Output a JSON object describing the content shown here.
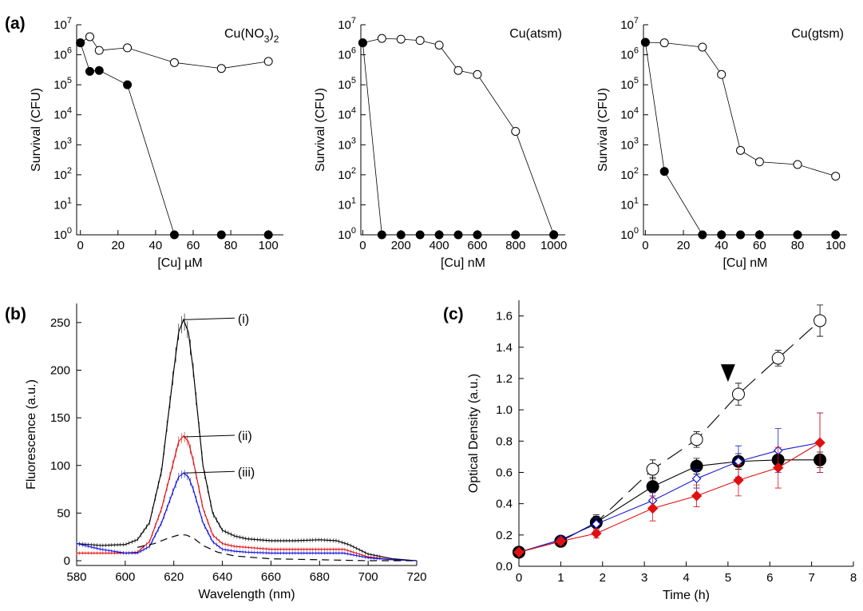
{
  "panel_labels": [
    "(a)",
    "(b)",
    "(c)"
  ],
  "chart_data": [
    {
      "type": "scatter",
      "title": "Cu(NO3)2",
      "xlabel": "[Cu] µM",
      "ylabel": "Survival (CFU)",
      "yscale": "log",
      "xlim": [
        -2,
        108
      ],
      "ylim": [
        1,
        10000000
      ],
      "xticks": [
        0,
        20,
        40,
        60,
        80,
        100
      ],
      "yticks": [
        1,
        10,
        100,
        1000,
        10000,
        100000,
        1000000,
        10000000
      ],
      "series": [
        {
          "marker": "open-circle",
          "x": [
            0,
            5,
            10,
            25,
            50,
            75,
            100
          ],
          "y": [
            2500000,
            4000000,
            1400000,
            1700000,
            550000,
            350000,
            600000
          ]
        },
        {
          "marker": "filled-circle",
          "x": [
            0,
            5,
            10,
            25,
            50,
            75,
            100
          ],
          "y": [
            2500000,
            280000,
            300000,
            100000,
            1,
            1,
            1
          ]
        }
      ]
    },
    {
      "type": "scatter",
      "title": "Cu(atsm)",
      "xlabel": "[Cu] nM",
      "ylabel": "Survival (CFU)",
      "yscale": "log",
      "xlim": [
        -10,
        1060
      ],
      "ylim": [
        1,
        10000000
      ],
      "xticks": [
        0,
        200,
        400,
        600,
        800,
        1000
      ],
      "yticks": [
        1,
        10,
        100,
        1000,
        10000,
        100000,
        1000000,
        10000000
      ],
      "series": [
        {
          "marker": "open-circle",
          "x": [
            0,
            100,
            200,
            300,
            400,
            500,
            600,
            800,
            1000
          ],
          "y": [
            2500000,
            3500000,
            3300000,
            3000000,
            2100000,
            300000,
            220000,
            2800,
            1
          ]
        },
        {
          "marker": "filled-circle",
          "x": [
            0,
            100,
            200,
            300,
            400,
            500,
            600,
            800,
            1000
          ],
          "y": [
            2500000,
            1,
            1,
            1,
            1,
            1,
            1,
            1,
            1
          ]
        }
      ]
    },
    {
      "type": "scatter",
      "title": "Cu(gtsm)",
      "xlabel": "[Cu] nM",
      "ylabel": "Survival (CFU)",
      "yscale": "log",
      "xlim": [
        -1,
        106
      ],
      "ylim": [
        1,
        10000000
      ],
      "xticks": [
        0,
        20,
        40,
        60,
        80,
        100
      ],
      "yticks": [
        1,
        10,
        100,
        1000,
        10000,
        100000,
        1000000,
        10000000
      ],
      "series": [
        {
          "marker": "open-circle",
          "x": [
            0,
            10,
            30,
            40,
            50,
            60,
            80,
            100
          ],
          "y": [
            2600000,
            2500000,
            1800000,
            220000,
            650,
            270,
            220,
            90
          ]
        },
        {
          "marker": "filled-circle",
          "x": [
            0,
            10,
            30,
            40,
            50,
            60,
            80,
            100
          ],
          "y": [
            2600000,
            130,
            1,
            1,
            1,
            1,
            1,
            1
          ]
        }
      ]
    },
    {
      "type": "line",
      "title": "",
      "xlabel": "Wavelength (nm)",
      "ylabel": "Fluorescence (a.u.)",
      "xlim": [
        580,
        720
      ],
      "ylim": [
        -5,
        270
      ],
      "xticks": [
        580,
        600,
        620,
        640,
        660,
        680,
        700,
        720
      ],
      "yticks": [
        0,
        50,
        100,
        150,
        200,
        250
      ],
      "annotations": [
        {
          "text": "(i)",
          "x": 624,
          "y": 253
        },
        {
          "text": "(ii)",
          "x": 624,
          "y": 130
        },
        {
          "text": "(iii)",
          "x": 624,
          "y": 92
        }
      ],
      "series": [
        {
          "color": "#000000",
          "style": "solid-errorbars",
          "x": [
            580,
            590,
            600,
            605,
            610,
            615,
            620,
            622,
            624,
            626,
            628,
            632,
            636,
            640,
            645,
            650,
            660,
            670,
            680,
            687,
            692,
            700,
            710,
            720
          ],
          "y": [
            18,
            16,
            17,
            22,
            40,
            95,
            200,
            240,
            253,
            240,
            200,
            100,
            50,
            32,
            26,
            23,
            21,
            21,
            22,
            21,
            17,
            7,
            2,
            0
          ]
        },
        {
          "color": "#e01010",
          "style": "solid-errorbars",
          "x": [
            580,
            590,
            600,
            605,
            610,
            615,
            620,
            622,
            624,
            626,
            628,
            632,
            636,
            640,
            645,
            650,
            660,
            680,
            690,
            700,
            710,
            720
          ],
          "y": [
            8,
            8,
            8,
            9,
            20,
            55,
            105,
            125,
            131,
            125,
            105,
            55,
            27,
            18,
            15,
            14,
            12,
            12,
            12,
            4,
            1,
            0
          ]
        },
        {
          "color": "#1010e0",
          "style": "solid-errorbars",
          "x": [
            580,
            590,
            600,
            605,
            610,
            615,
            620,
            622,
            624,
            626,
            628,
            632,
            636,
            640,
            645,
            650,
            660,
            680,
            690,
            700,
            710,
            720
          ],
          "y": [
            18,
            12,
            8,
            8,
            15,
            40,
            75,
            88,
            92,
            88,
            75,
            40,
            20,
            12,
            10,
            9,
            8,
            8,
            8,
            3,
            1,
            0
          ]
        },
        {
          "color": "#000000",
          "style": "dashed",
          "x": [
            605,
            612,
            618,
            622,
            625,
            628,
            632,
            638,
            645,
            660,
            680,
            700,
            720
          ],
          "y": [
            14,
            18,
            24,
            27,
            27,
            24,
            16,
            9,
            5,
            2,
            1,
            0,
            0
          ]
        }
      ]
    },
    {
      "type": "line",
      "title": "",
      "xlabel": "Time (h)",
      "ylabel": "Optical Density (a.u.)",
      "xlim": [
        0,
        8
      ],
      "ylim": [
        0,
        1.7
      ],
      "xticks": [
        0,
        1,
        2,
        3,
        4,
        5,
        6,
        7,
        8
      ],
      "yticks": [
        0.0,
        0.2,
        0.4,
        0.6,
        0.8,
        1.0,
        1.2,
        1.4,
        1.6
      ],
      "annotations": [
        {
          "text": "▼",
          "x": 5,
          "y": 1.23
        }
      ],
      "series": [
        {
          "marker": "open-circle",
          "color": "#000000",
          "style": "dashed",
          "x": [
            0,
            1,
            1.85,
            3.2,
            4.25,
            5.25,
            6.2,
            7.2
          ],
          "y": [
            0.09,
            0.16,
            0.28,
            0.62,
            0.81,
            1.1,
            1.33,
            1.57
          ],
          "err": [
            0.01,
            0.02,
            0.05,
            0.06,
            0.05,
            0.07,
            0.05,
            0.1
          ]
        },
        {
          "marker": "filled-circle",
          "color": "#000000",
          "style": "solid",
          "x": [
            0,
            1,
            1.85,
            3.2,
            4.25,
            5.25,
            6.2,
            7.2
          ],
          "y": [
            0.09,
            0.16,
            0.28,
            0.51,
            0.64,
            0.67,
            0.68,
            0.68
          ],
          "err": [
            0.01,
            0.02,
            0.04,
            0.06,
            0.05,
            0.05,
            0.05,
            0.05
          ]
        },
        {
          "marker": "open-diamond",
          "color": "#1a1ad0",
          "style": "solid",
          "x": [
            0,
            1,
            1.85,
            3.2,
            4.25,
            5.25,
            6.2,
            7.2
          ],
          "y": [
            0.09,
            0.17,
            0.27,
            0.42,
            0.56,
            0.67,
            0.74,
            0.79
          ],
          "err": [
            0.01,
            0.02,
            0.04,
            0.05,
            0.06,
            0.1,
            0.14,
            0.19
          ]
        },
        {
          "marker": "filled-diamond",
          "color": "#e01010",
          "style": "solid",
          "x": [
            0,
            1,
            1.85,
            3.2,
            4.25,
            5.25,
            6.2,
            7.2
          ],
          "y": [
            0.09,
            0.16,
            0.21,
            0.37,
            0.45,
            0.55,
            0.63,
            0.79
          ],
          "err": [
            0.01,
            0.02,
            0.03,
            0.08,
            0.07,
            0.1,
            0.13,
            0.19
          ]
        }
      ]
    }
  ]
}
